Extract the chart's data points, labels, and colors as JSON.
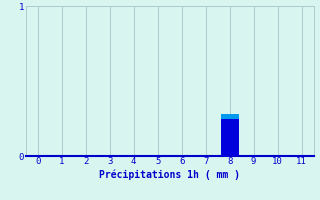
{
  "categories": [
    0,
    1,
    2,
    3,
    4,
    5,
    6,
    7,
    8,
    9,
    10,
    11
  ],
  "values": [
    0,
    0,
    0,
    0,
    0,
    0,
    0,
    0,
    0.28,
    0,
    0,
    0
  ],
  "bar_color": "#0000dd",
  "bar_top_color": "#0099ee",
  "xlabel": "Précipitations 1h ( mm )",
  "ylim": [
    0,
    1
  ],
  "xlim": [
    -0.5,
    11.5
  ],
  "yticks": [
    0,
    1
  ],
  "xticks": [
    0,
    1,
    2,
    3,
    4,
    5,
    6,
    7,
    8,
    9,
    10,
    11
  ],
  "background_color": "#d8f5f0",
  "grid_color": "#aacccc",
  "text_color": "#0000cc",
  "tick_color": "#0000cc",
  "xlabel_fontsize": 7,
  "tick_fontsize": 6.5,
  "bar_width": 0.75
}
